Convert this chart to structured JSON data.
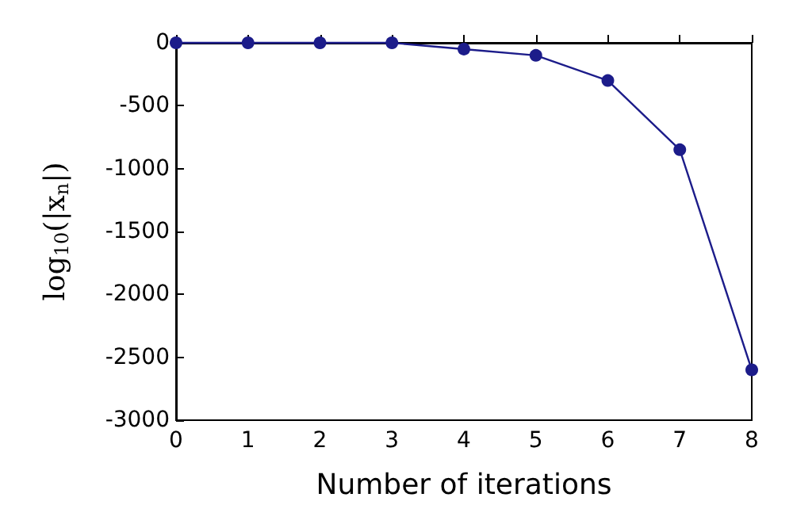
{
  "chart_data": {
    "type": "line",
    "xlabel": "Number of iterations",
    "ylabel": "log$_{10}$(|x$_{n}$|)",
    "x": [
      0,
      1,
      2,
      3,
      4,
      5,
      6,
      7,
      8
    ],
    "series": [
      {
        "color": "#1c1c8a",
        "values": [
          0,
          0,
          0,
          0,
          -50,
          -100,
          -300,
          -850,
          -2600
        ]
      }
    ],
    "xlim": [
      0,
      8
    ],
    "xticks": [
      0,
      1,
      2,
      3,
      4,
      5,
      6,
      7,
      8
    ],
    "ylim": [
      -3000,
      0
    ],
    "yticks": [
      -3000,
      -2500,
      -2000,
      -1500,
      -1000,
      -500,
      0
    ],
    "marker": "circle",
    "line_style": "solid",
    "grid": false
  }
}
